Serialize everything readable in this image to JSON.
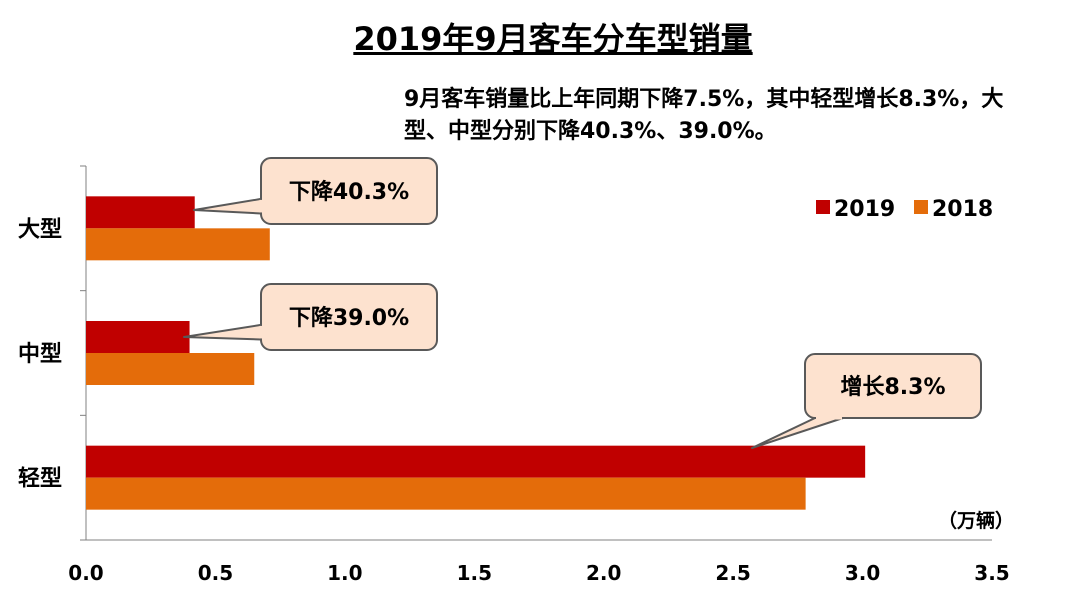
{
  "title": "2019年9月客车分车型销量",
  "note": "9月客车销量比上年同期下降7.5%，其中轻型增长8.3%，大型、中型分别下降40.3%、39.0%。",
  "unit": "（万辆）",
  "colors": {
    "s2019": "#C00000",
    "s2018": "#E46C0A",
    "callout_fill": "#FDE2CF",
    "callout_stroke": "#595959"
  },
  "chart_data": {
    "type": "bar",
    "orientation": "horizontal",
    "categories": [
      "大型",
      "中型",
      "轻型"
    ],
    "series": [
      {
        "name": "2019",
        "values": [
          0.42,
          0.4,
          3.01
        ]
      },
      {
        "name": "2018",
        "values": [
          0.71,
          0.65,
          2.78
        ]
      }
    ],
    "xlim": [
      0,
      3.5
    ],
    "xticks": [
      "0.0",
      "0.5",
      "1.0",
      "1.5",
      "2.0",
      "2.5",
      "3.0",
      "3.5"
    ],
    "legend": "top-right",
    "grid": false,
    "annotations": [
      {
        "category": "大型",
        "text": "下降40.3%"
      },
      {
        "category": "中型",
        "text": "下降39.0%"
      },
      {
        "category": "轻型",
        "text": "增长8.3%"
      }
    ]
  }
}
